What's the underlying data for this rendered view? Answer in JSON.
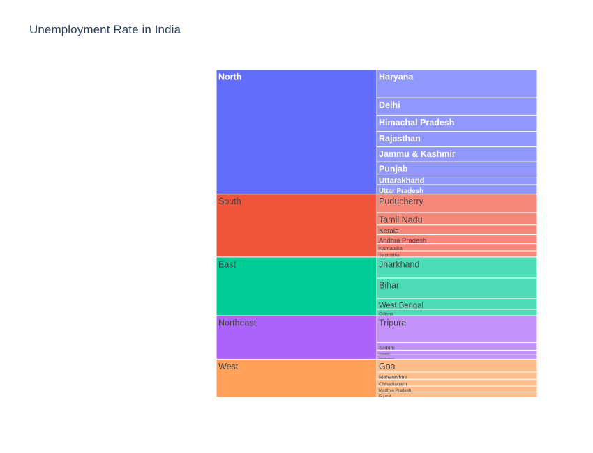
{
  "title": "Unemployment Rate in India",
  "chart_data": {
    "type": "icicle",
    "title": "Unemployment Rate in India",
    "label_colors": {
      "light": "#ffffff",
      "dark": "#444444"
    },
    "groups": [
      {
        "name": "North",
        "color": "#636efa",
        "child_color": "#9098fb",
        "label_color": "light",
        "children": [
          {
            "name": "Haryana",
            "value": 26.1
          },
          {
            "name": "Delhi",
            "value": 16.5
          },
          {
            "name": "Himachal Pradesh",
            "value": 14.9
          },
          {
            "name": "Rajasthan",
            "value": 14.2
          },
          {
            "name": "Jammu & Kashmir",
            "value": 14.0
          },
          {
            "name": "Punjab",
            "value": 11.2
          },
          {
            "name": "Uttarakhand",
            "value": 10.1
          },
          {
            "name": "Uttar Pradesh",
            "value": 8.8
          }
        ]
      },
      {
        "name": "South",
        "color": "#ef553b",
        "child_color": "#f4887a",
        "label_color": "dark",
        "children": [
          {
            "name": "Puducherry",
            "value": 17.1
          },
          {
            "name": "Tamil Nadu",
            "value": 11.5
          },
          {
            "name": "Kerala",
            "value": 8.9
          },
          {
            "name": "Andhra Pradesh",
            "value": 8.5
          },
          {
            "name": "Karnataka",
            "value": 6.7
          },
          {
            "name": "Telangana",
            "value": 5.8
          }
        ]
      },
      {
        "name": "East",
        "color": "#00cc96",
        "child_color": "#4ddcb6",
        "label_color": "dark",
        "children": [
          {
            "name": "Jharkhand",
            "value": 19.5
          },
          {
            "name": "Bihar",
            "value": 18.9
          },
          {
            "name": "West Bengal",
            "value": 10.2
          },
          {
            "name": "Odisha",
            "value": 5.9
          }
        ]
      },
      {
        "name": "Northeast",
        "color": "#ab63fa",
        "child_color": "#c492fb",
        "label_color": "dark",
        "children": [
          {
            "name": "Tripura",
            "value": 25.0
          },
          {
            "name": "Sikkim",
            "value": 7.0
          },
          {
            "name": "Assam",
            "value": 4.5
          },
          {
            "name": "Meghalaya",
            "value": 4.0
          }
        ]
      },
      {
        "name": "West",
        "color": "#ffa15a",
        "child_color": "#ffbd8b",
        "label_color": "dark",
        "children": [
          {
            "name": "Goa",
            "value": 12.0
          },
          {
            "name": "Maharashtra",
            "value": 6.6
          },
          {
            "name": "Chhattisgarh",
            "value": 6.4
          },
          {
            "name": "Madhya Pradesh",
            "value": 5.5
          },
          {
            "name": "Gujarat",
            "value": 4.8
          }
        ]
      }
    ]
  }
}
